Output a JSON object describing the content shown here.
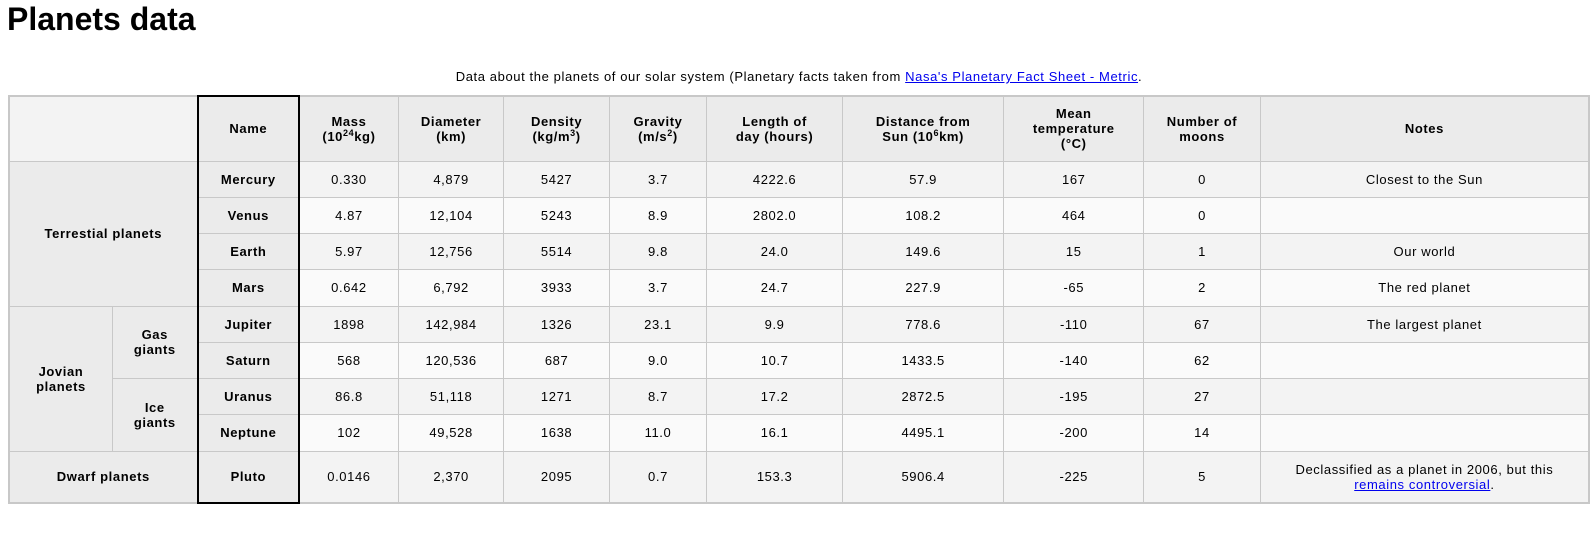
{
  "title": "Planets data",
  "caption": {
    "prefix": "Data about the planets of our solar system (Planetary facts taken from ",
    "link_text": "Nasa's Planetary Fact Sheet - Metric",
    "suffix": "."
  },
  "headers": {
    "name": "Name",
    "mass_line1": "Mass",
    "mass_pre": "(10",
    "mass_sup": "24",
    "mass_post": "kg)",
    "diameter_line1": "Diameter",
    "diameter_line2": "(km)",
    "density_line1": "Density",
    "density_pre": "(kg/m",
    "density_sup": "3",
    "density_post": ")",
    "gravity_line1": "Gravity",
    "gravity_pre": "(m/s",
    "gravity_sup": "2",
    "gravity_post": ")",
    "day_line1": "Length of",
    "day_line2": "day (hours)",
    "distance_line1": "Distance from",
    "distance_pre": "Sun (10",
    "distance_sup": "6",
    "distance_post": "km)",
    "temp_line1": "Mean",
    "temp_line2": "temperature",
    "temp_line3": "(°C)",
    "moons_line1": "Number of",
    "moons_line2": "moons",
    "notes": "Notes"
  },
  "groups": {
    "terrestrial": "Terrestial planets",
    "jovian_line1": "Jovian",
    "jovian_line2": "planets",
    "gas_line1": "Gas",
    "gas_line2": "giants",
    "ice_line1": "Ice",
    "ice_line2": "giants",
    "dwarf": "Dwarf planets"
  },
  "planets": [
    {
      "name": "Mercury",
      "mass": "0.330",
      "diameter": "4,879",
      "density": "5427",
      "gravity": "3.7",
      "day": "4222.6",
      "distance": "57.9",
      "temp": "167",
      "moons": "0",
      "notes": "Closest to the Sun"
    },
    {
      "name": "Venus",
      "mass": "4.87",
      "diameter": "12,104",
      "density": "5243",
      "gravity": "8.9",
      "day": "2802.0",
      "distance": "108.2",
      "temp": "464",
      "moons": "0",
      "notes": ""
    },
    {
      "name": "Earth",
      "mass": "5.97",
      "diameter": "12,756",
      "density": "5514",
      "gravity": "9.8",
      "day": "24.0",
      "distance": "149.6",
      "temp": "15",
      "moons": "1",
      "notes": "Our world"
    },
    {
      "name": "Mars",
      "mass": "0.642",
      "diameter": "6,792",
      "density": "3933",
      "gravity": "3.7",
      "day": "24.7",
      "distance": "227.9",
      "temp": "-65",
      "moons": "2",
      "notes": "The red planet"
    },
    {
      "name": "Jupiter",
      "mass": "1898",
      "diameter": "142,984",
      "density": "1326",
      "gravity": "23.1",
      "day": "9.9",
      "distance": "778.6",
      "temp": "-110",
      "moons": "67",
      "notes": "The largest planet"
    },
    {
      "name": "Saturn",
      "mass": "568",
      "diameter": "120,536",
      "density": "687",
      "gravity": "9.0",
      "day": "10.7",
      "distance": "1433.5",
      "temp": "-140",
      "moons": "62",
      "notes": ""
    },
    {
      "name": "Uranus",
      "mass": "86.8",
      "diameter": "51,118",
      "density": "1271",
      "gravity": "8.7",
      "day": "17.2",
      "distance": "2872.5",
      "temp": "-195",
      "moons": "27",
      "notes": ""
    },
    {
      "name": "Neptune",
      "mass": "102",
      "diameter": "49,528",
      "density": "1638",
      "gravity": "11.0",
      "day": "16.1",
      "distance": "4495.1",
      "temp": "-200",
      "moons": "14",
      "notes": ""
    },
    {
      "name": "Pluto",
      "mass": "0.0146",
      "diameter": "2,370",
      "density": "2095",
      "gravity": "0.7",
      "day": "153.3",
      "distance": "5906.4",
      "temp": "-225",
      "moons": "5",
      "notes_prefix": "Declassified as a planet in 2006, but this",
      "notes_link": "remains controversial",
      "notes_suffix": "."
    }
  ]
}
